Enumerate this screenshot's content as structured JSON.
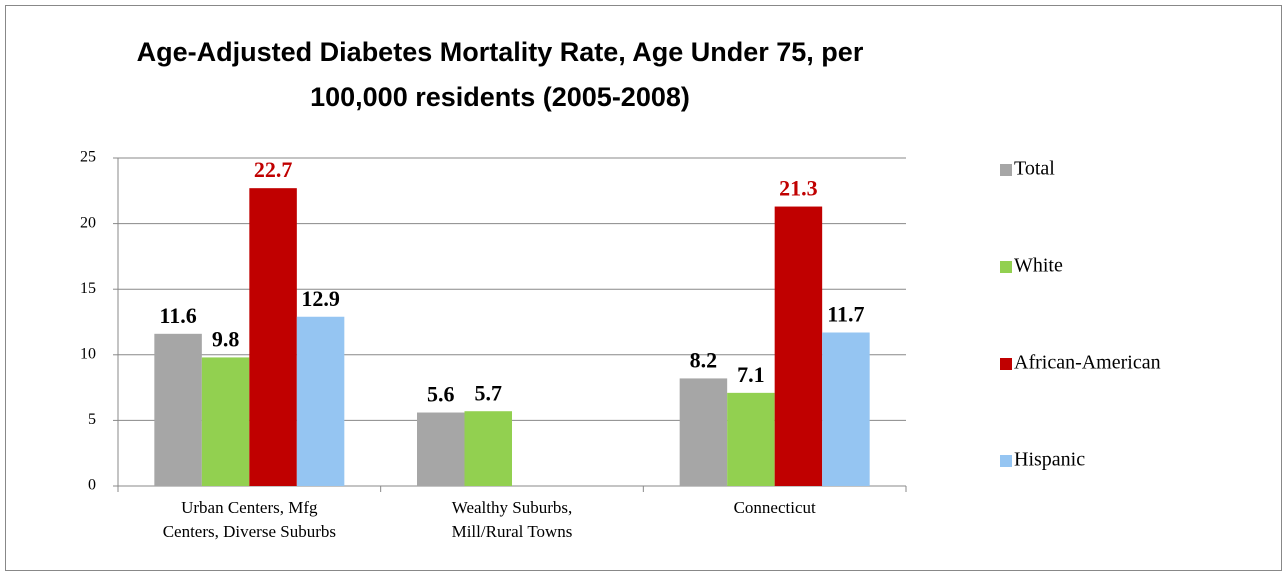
{
  "chart_data": {
    "type": "bar",
    "title": "Age-Adjusted Diabetes Mortality Rate, Age Under 75, per\n100,000 residents (2005-2008)",
    "categories": [
      "Urban Centers, Mfg\nCenters, Diverse Suburbs",
      "Wealthy Suburbs,\nMill/Rural Towns",
      "Connecticut"
    ],
    "series": [
      {
        "name": "Total",
        "color": "#a6a6a6",
        "value_label_color": "#000000",
        "values": [
          11.6,
          5.6,
          8.2
        ]
      },
      {
        "name": "White",
        "color": "#92d050",
        "value_label_color": "#000000",
        "values": [
          9.8,
          5.7,
          7.1
        ]
      },
      {
        "name": "African-American",
        "color": "#c00000",
        "value_label_color": "#c00000",
        "values": [
          22.7,
          null,
          21.3
        ]
      },
      {
        "name": "Hispanic",
        "color": "#95c5f2",
        "value_label_color": "#000000",
        "values": [
          12.9,
          null,
          11.7
        ]
      }
    ],
    "ylim": [
      0,
      25
    ],
    "yticks": [
      0,
      5,
      10,
      15,
      20,
      25
    ],
    "grid": true,
    "legend": "right"
  }
}
